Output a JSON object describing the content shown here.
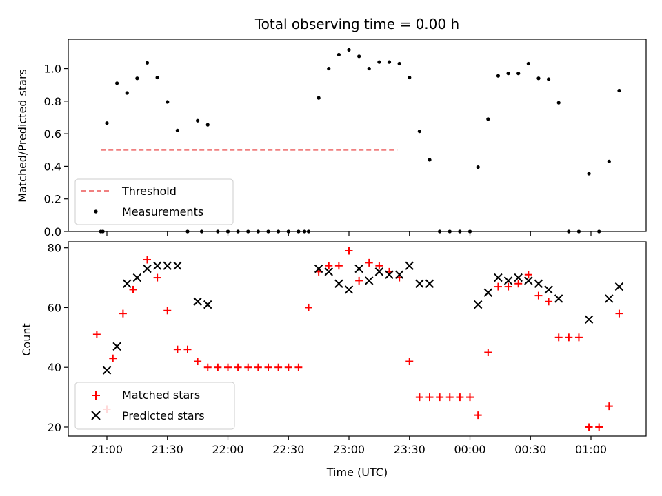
{
  "chart_data": {
    "type": "scatter",
    "title": "Total observing time = 0.00 h",
    "xlabel": "Time (UTC)",
    "x_ticks": [
      "21:00",
      "21:30",
      "22:00",
      "22:30",
      "23:00",
      "23:30",
      "00:00",
      "00:30",
      "01:00"
    ],
    "top": {
      "ylabel": "Matched/Predicted stars",
      "ylim": [
        0,
        1.18
      ],
      "y_ticks": [
        "0.0",
        "0.2",
        "0.4",
        "0.6",
        "0.8",
        "1.0"
      ],
      "threshold": {
        "name": "Threshold",
        "value": 0.5,
        "x_range": [
          "20:57",
          "23:24"
        ],
        "color": "#f08080"
      },
      "series": {
        "name": "Measurements",
        "color": "#000000",
        "x": [
          "20:57",
          "21:00",
          "21:05",
          "21:10",
          "21:15",
          "21:20",
          "21:25",
          "21:30",
          "21:35",
          "21:40",
          "21:45",
          "21:50",
          "21:55",
          "22:00",
          "22:05",
          "22:10",
          "22:15",
          "22:20",
          "22:25",
          "22:30",
          "22:35",
          "22:40",
          "22:45",
          "22:50",
          "22:55",
          "23:00",
          "23:05",
          "23:10",
          "23:15",
          "23:20",
          "23:25",
          "23:30",
          "23:35",
          "23:40",
          "23:45",
          "23:50",
          "23:55",
          "00:00",
          "00:04",
          "00:09",
          "00:14",
          "00:19",
          "00:24",
          "00:29",
          "00:34",
          "00:39",
          "00:44",
          "00:49",
          "00:54",
          "00:59",
          "01:04",
          "01:09",
          "01:14",
          "20:58",
          "21:47",
          "22:38"
        ],
        "y": [
          0.0,
          0.665,
          0.91,
          0.85,
          0.94,
          1.035,
          0.945,
          0.795,
          0.62,
          0.0,
          0.68,
          0.655,
          0.0,
          0.0,
          0.0,
          0.0,
          0.0,
          0.0,
          0.0,
          0.0,
          0.0,
          0.0,
          0.82,
          1.0,
          1.085,
          1.115,
          1.075,
          1.0,
          1.04,
          1.04,
          1.03,
          0.945,
          0.615,
          0.44,
          0.0,
          0.0,
          0.0,
          0.0,
          0.395,
          0.69,
          0.955,
          0.97,
          0.97,
          1.03,
          0.94,
          0.935,
          0.79,
          0.0,
          0.0,
          0.355,
          0.0,
          0.43,
          0.865,
          0.0,
          0.0,
          0.0
        ]
      }
    },
    "bottom": {
      "ylabel": "Count",
      "ylim": [
        17,
        82
      ],
      "y_ticks": [
        "20",
        "40",
        "60",
        "80"
      ],
      "series": [
        {
          "name": "Matched stars",
          "marker": "+",
          "color": "#ff0000",
          "x": [
            "20:55",
            "21:00",
            "21:03",
            "21:05",
            "21:08",
            "21:13",
            "21:15",
            "21:20",
            "21:25",
            "21:30",
            "21:35",
            "21:40",
            "21:45",
            "21:50",
            "21:55",
            "22:00",
            "22:05",
            "22:10",
            "22:15",
            "22:20",
            "22:25",
            "22:30",
            "22:35",
            "22:40",
            "22:45",
            "22:50",
            "22:55",
            "23:00",
            "23:05",
            "23:10",
            "23:15",
            "23:20",
            "23:25",
            "23:30",
            "23:35",
            "23:40",
            "23:45",
            "23:50",
            "23:55",
            "00:00",
            "00:04",
            "00:09",
            "00:14",
            "00:19",
            "00:24",
            "00:29",
            "00:34",
            "00:39",
            "00:44",
            "00:49",
            "00:54",
            "00:59",
            "01:04",
            "01:09",
            "01:14"
          ],
          "y": [
            51,
            26,
            43,
            null,
            58,
            66,
            null,
            76,
            70,
            59,
            46,
            46,
            42,
            40,
            40,
            40,
            40,
            40,
            40,
            40,
            40,
            40,
            40,
            60,
            72,
            74,
            74,
            79,
            69,
            75,
            74,
            72,
            70,
            42,
            30,
            30,
            30,
            30,
            30,
            30,
            24,
            45,
            67,
            67,
            68,
            71,
            64,
            62,
            50,
            50,
            50,
            20,
            20,
            27,
            58
          ]
        },
        {
          "name": "Predicted stars",
          "marker": "x",
          "color": "#000000",
          "x": [
            "21:00",
            "21:05",
            "21:10",
            "21:15",
            "21:20",
            "21:25",
            "21:30",
            "21:35",
            "21:40",
            "21:45",
            "21:50",
            "21:55",
            "22:00",
            "22:05",
            "22:10",
            "22:15",
            "22:20",
            "22:25",
            "22:30",
            "22:35",
            "22:40",
            "22:45",
            "22:50",
            "22:55",
            "23:00",
            "23:05",
            "23:10",
            "23:15",
            "23:20",
            "23:25",
            "23:30",
            "23:35",
            "23:40",
            "23:45",
            "23:50",
            "23:55",
            "00:00",
            "00:04",
            "00:09",
            "00:14",
            "00:19",
            "00:24",
            "00:29",
            "00:34",
            "00:39",
            "00:44",
            "00:49",
            "00:54",
            "00:59",
            "01:04",
            "01:09",
            "01:14"
          ],
          "y": [
            39,
            47,
            68,
            70,
            73,
            74,
            74,
            74,
            null,
            62,
            61,
            null,
            null,
            null,
            null,
            null,
            null,
            null,
            null,
            null,
            null,
            73,
            72,
            68,
            66,
            73,
            69,
            72,
            71,
            71,
            74,
            68,
            68,
            null,
            null,
            null,
            null,
            61,
            65,
            70,
            69,
            70,
            69,
            68,
            66,
            63,
            null,
            null,
            56,
            null,
            63,
            67
          ]
        }
      ]
    },
    "legend_top": [
      "Threshold",
      "Measurements"
    ],
    "legend_bottom": [
      "Matched stars",
      "Predicted stars"
    ],
    "legend_placement": "lower-left",
    "grid": false
  }
}
